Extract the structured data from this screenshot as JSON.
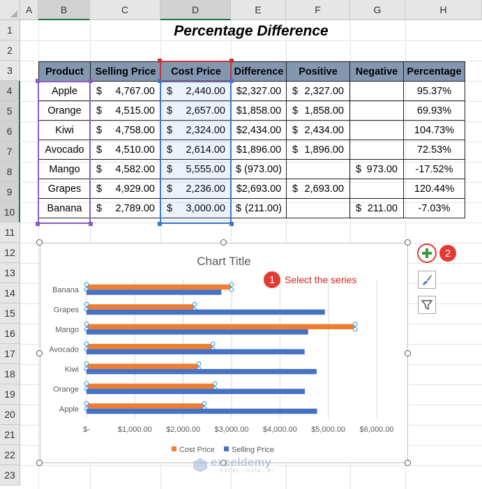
{
  "columns": [
    "A",
    "B",
    "C",
    "D",
    "E",
    "F",
    "G",
    "H"
  ],
  "rows": [
    "1",
    "2",
    "3",
    "4",
    "5",
    "6",
    "7",
    "8",
    "9",
    "10",
    "11",
    "12",
    "13",
    "14",
    "15",
    "16",
    "17",
    "18",
    "19",
    "20",
    "21",
    "22",
    "23"
  ],
  "sheet_title": "Percentage Difference",
  "table": {
    "headers": [
      "Product",
      "Selling Price",
      "Cost Price",
      "Difference",
      "Positive",
      "Negative",
      "Percentage"
    ],
    "rows": [
      {
        "product": "Apple",
        "sell": "4,767.00",
        "cost": "2,440.00",
        "diff": "$2,327.00",
        "pos": "2,327.00",
        "neg": "",
        "pct": "95.37%"
      },
      {
        "product": "Orange",
        "sell": "4,515.00",
        "cost": "2,657.00",
        "diff": "$1,858.00",
        "pos": "1,858.00",
        "neg": "",
        "pct": "69.93%"
      },
      {
        "product": "Kiwi",
        "sell": "4,758.00",
        "cost": "2,324.00",
        "diff": "$2,434.00",
        "pos": "2,434.00",
        "neg": "",
        "pct": "104.73%"
      },
      {
        "product": "Avocado",
        "sell": "4,510.00",
        "cost": "2,614.00",
        "diff": "$1,896.00",
        "pos": "1,896.00",
        "neg": "",
        "pct": "72.53%"
      },
      {
        "product": "Mango",
        "sell": "4,582.00",
        "cost": "5,555.00",
        "diff": "(973.00)",
        "pos": "",
        "neg": "973.00",
        "pct": "-17.52%"
      },
      {
        "product": "Grapes",
        "sell": "4,929.00",
        "cost": "2,236.00",
        "diff": "$2,693.00",
        "pos": "2,693.00",
        "neg": "",
        "pct": "120.44%"
      },
      {
        "product": "Banana",
        "sell": "2,789.00",
        "cost": "3,000.00",
        "diff": "(211.00)",
        "pos": "",
        "neg": "211.00",
        "pct": "-7.03%"
      }
    ],
    "currency": "$"
  },
  "annotation": {
    "step1_num": "1",
    "step1_text": "Select the series",
    "step2_num": "2"
  },
  "chart_data": {
    "type": "bar",
    "orientation": "horizontal",
    "title": "Chart Title",
    "categories": [
      "Apple",
      "Orange",
      "Kiwi",
      "Avocado",
      "Mango",
      "Grapes",
      "Banana"
    ],
    "series": [
      {
        "name": "Cost Price",
        "color": "#ed7d31",
        "values": [
          2440,
          2657,
          2324,
          2614,
          5555,
          2236,
          3000
        ]
      },
      {
        "name": "Selling Price",
        "color": "#4472c4",
        "values": [
          4767,
          4515,
          4758,
          4510,
          4582,
          4929,
          2789
        ]
      }
    ],
    "xlim": [
      0,
      6000
    ],
    "xticks": [
      0,
      1000,
      2000,
      3000,
      4000,
      5000,
      6000
    ],
    "xtick_labels": [
      "$-",
      "$1,000.00",
      "$2,000.00",
      "$3,000.00",
      "$4,000.00",
      "$5,000.00",
      "$6,000.00"
    ],
    "legend_position": "bottom",
    "grid": true
  },
  "chart_side_buttons": {
    "add": "plus-icon",
    "style": "brush-icon",
    "filter": "filter-icon"
  },
  "watermark": {
    "brand": "exceldemy",
    "tagline": "EXCEL · DATA · BI"
  },
  "colors": {
    "header_fill": "#8497b0",
    "selection_product": "#8a5ac8",
    "selection_cost": "#3a78c8",
    "selection_header": "#c2363b",
    "annotation_red": "#e53935",
    "add_icon_green": "#3b9a3b"
  }
}
